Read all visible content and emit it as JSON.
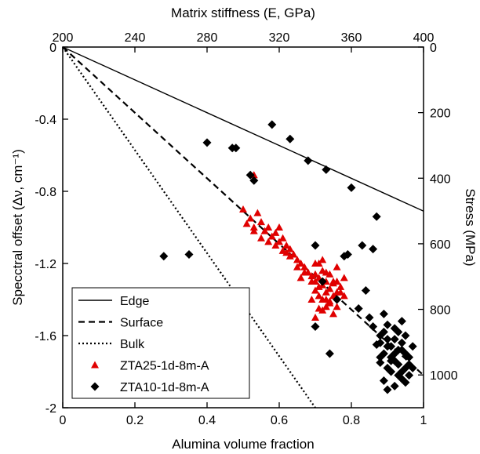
{
  "chart_data": {
    "type": "scatter",
    "xlabel": "Alumina volume fraction",
    "x_ticks": [
      "0",
      "0.2",
      "0.4",
      "0.6",
      "0.8",
      "1"
    ],
    "xlim": [
      0,
      1
    ],
    "ylabel_left": "Specctral offset (Δν, cm⁻¹)",
    "y_ticks_left": [
      "0",
      "-0.4",
      "-0.8",
      "-1.2",
      "-1.6",
      "-2"
    ],
    "ylim_left": [
      -2,
      0
    ],
    "top_axis_label": "Matrix stiffness (E, GPa)",
    "top_ticks": [
      "200",
      "240",
      "280",
      "320",
      "360",
      "400"
    ],
    "top_lim": [
      200,
      400
    ],
    "right_axis_label": "Stress (MPa)",
    "right_ticks": [
      "0",
      "200",
      "400",
      "600",
      "800",
      "1000"
    ],
    "right_lim": [
      0,
      1100
    ],
    "legend_position": "bottom-left",
    "lines": [
      {
        "name": "Edge",
        "style": "solid",
        "x": [
          0,
          1
        ],
        "y": [
          0,
          -0.91
        ]
      },
      {
        "name": "Surface",
        "style": "dashed",
        "x": [
          0,
          1
        ],
        "y": [
          0,
          -1.82
        ]
      },
      {
        "name": "Bulk",
        "style": "dotted",
        "x": [
          0,
          0.7
        ],
        "y": [
          0,
          -2.0
        ]
      }
    ],
    "series": [
      {
        "name": "ZTA25-1d-8m-A",
        "marker": "triangle",
        "color": "#e00000",
        "x": [
          0.5,
          0.52,
          0.54,
          0.53,
          0.55,
          0.56,
          0.57,
          0.58,
          0.59,
          0.6,
          0.61,
          0.62,
          0.63,
          0.64,
          0.65,
          0.66,
          0.67,
          0.68,
          0.69,
          0.7,
          0.71,
          0.72,
          0.73,
          0.74,
          0.75,
          0.76,
          0.77,
          0.51,
          0.53,
          0.55,
          0.57,
          0.59,
          0.61,
          0.63,
          0.65,
          0.67,
          0.69,
          0.7,
          0.71,
          0.72,
          0.73,
          0.74,
          0.75,
          0.76,
          0.7,
          0.72,
          0.74,
          0.76,
          0.78,
          0.71,
          0.73,
          0.75,
          0.77,
          0.7,
          0.72,
          0.74,
          0.73,
          0.71,
          0.75,
          0.69,
          0.78,
          0.76,
          0.72,
          0.7,
          0.73,
          0.53,
          0.66,
          0.6,
          0.62,
          0.71
        ],
        "y": [
          -0.9,
          -0.95,
          -0.92,
          -1.0,
          -0.97,
          -1.02,
          -1.0,
          -1.05,
          -1.03,
          -1.08,
          -1.06,
          -1.1,
          -1.12,
          -1.15,
          -1.18,
          -1.2,
          -1.22,
          -1.25,
          -1.27,
          -1.3,
          -1.28,
          -1.32,
          -1.3,
          -1.34,
          -1.31,
          -1.36,
          -1.33,
          -0.98,
          -1.02,
          -1.06,
          -1.08,
          -1.1,
          -1.13,
          -1.16,
          -1.22,
          -1.25,
          -1.3,
          -1.35,
          -1.38,
          -1.4,
          -1.36,
          -1.42,
          -1.38,
          -1.44,
          -1.2,
          -1.24,
          -1.26,
          -1.22,
          -1.28,
          -1.45,
          -1.4,
          -1.3,
          -1.36,
          -1.5,
          -1.46,
          -1.41,
          -1.25,
          -1.33,
          -1.48,
          -1.4,
          -1.38,
          -1.3,
          -1.18,
          -1.26,
          -1.44,
          -0.71,
          -1.28,
          -1.0,
          -1.14,
          -1.2
        ]
      },
      {
        "name": "ZTA10-1d-8m-A",
        "marker": "diamond",
        "color": "#000000",
        "x": [
          0.58,
          0.63,
          0.4,
          0.47,
          0.48,
          0.52,
          0.53,
          0.68,
          0.73,
          0.8,
          0.87,
          0.28,
          0.35,
          0.7,
          0.72,
          0.78,
          0.79,
          0.84,
          0.82,
          0.85,
          0.86,
          0.88,
          0.87,
          0.89,
          0.9,
          0.91,
          0.92,
          0.93,
          0.94,
          0.95,
          0.96,
          0.88,
          0.9,
          0.92,
          0.94,
          0.96,
          0.89,
          0.91,
          0.93,
          0.95,
          0.9,
          0.92,
          0.94,
          0.88,
          0.91,
          0.93,
          0.95,
          0.89,
          0.9,
          0.92,
          0.94,
          0.96,
          0.91,
          0.93,
          0.9,
          0.92,
          0.94,
          0.88,
          0.95,
          0.97,
          0.74,
          0.7,
          0.83,
          0.86,
          0.76,
          0.97,
          0.89
        ],
        "y": [
          -0.43,
          -0.51,
          -0.53,
          -0.56,
          -0.56,
          -0.71,
          -0.74,
          -0.63,
          -0.68,
          -0.78,
          -0.94,
          -1.16,
          -1.15,
          -1.1,
          -1.3,
          -1.16,
          -1.15,
          -1.35,
          -1.45,
          -1.5,
          -1.55,
          -1.6,
          -1.65,
          -1.58,
          -1.62,
          -1.66,
          -1.7,
          -1.68,
          -1.64,
          -1.6,
          -1.72,
          -1.75,
          -1.78,
          -1.74,
          -1.8,
          -1.76,
          -1.7,
          -1.72,
          -1.76,
          -1.78,
          -1.66,
          -1.62,
          -1.68,
          -1.72,
          -1.8,
          -1.82,
          -1.86,
          -1.85,
          -1.9,
          -1.88,
          -1.84,
          -1.82,
          -1.74,
          -1.58,
          -1.54,
          -1.56,
          -1.52,
          -1.64,
          -1.7,
          -1.66,
          -1.7,
          -1.55,
          -1.1,
          -1.12,
          -1.4,
          -1.78,
          -1.48
        ]
      }
    ]
  }
}
